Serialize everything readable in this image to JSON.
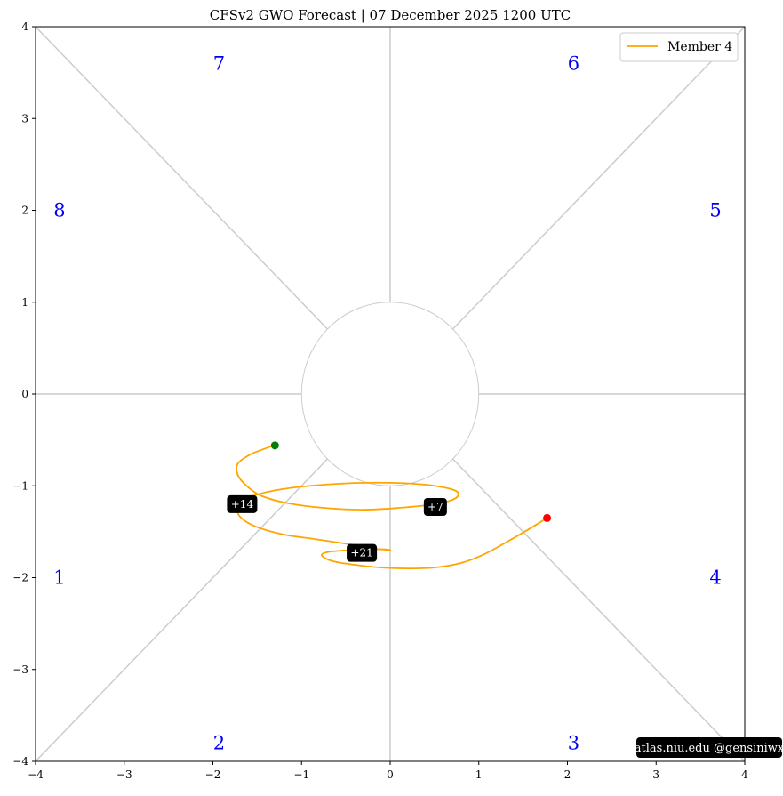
{
  "chart_data": {
    "type": "line",
    "title": "CFSv2 GWO Forecast   |   07  December  2025 1200 UTC",
    "xlabel": "",
    "ylabel": "",
    "xlim": [
      -4,
      4
    ],
    "ylim": [
      -4,
      4
    ],
    "x_ticks": [
      "−4",
      "−3",
      "−2",
      "−1",
      "0",
      "1",
      "2",
      "3",
      "4"
    ],
    "y_ticks": [
      "−4",
      "−3",
      "−2",
      "−1",
      "0",
      "1",
      "2",
      "3",
      "4"
    ],
    "grid": false,
    "legend": {
      "placement": "top-right",
      "entries": [
        "Member 4"
      ]
    },
    "phase_labels": [
      {
        "text": "1",
        "x": -3.73,
        "y": -2.0
      },
      {
        "text": "2",
        "x": -1.93,
        "y": -3.8
      },
      {
        "text": "3",
        "x": 2.07,
        "y": -3.8
      },
      {
        "text": "4",
        "x": 3.67,
        "y": -2.0
      },
      {
        "text": "5",
        "x": 3.67,
        "y": 2.0
      },
      {
        "text": "6",
        "x": 2.07,
        "y": 3.6
      },
      {
        "text": "7",
        "x": -1.93,
        "y": 3.6
      },
      {
        "text": "8",
        "x": -3.73,
        "y": 2.0
      }
    ],
    "series": [
      {
        "name": "Member 4",
        "color": "#ffa500",
        "points": [
          [
            1.77,
            -1.35
          ],
          [
            1.55,
            -1.48
          ],
          [
            1.3,
            -1.62
          ],
          [
            1.05,
            -1.75
          ],
          [
            0.8,
            -1.84
          ],
          [
            0.5,
            -1.89
          ],
          [
            0.2,
            -1.9
          ],
          [
            -0.1,
            -1.89
          ],
          [
            -0.4,
            -1.86
          ],
          [
            -0.65,
            -1.82
          ],
          [
            -0.77,
            -1.76
          ],
          [
            -0.7,
            -1.72
          ],
          [
            -0.45,
            -1.7
          ],
          [
            -0.1,
            -1.69
          ],
          [
            0.0,
            -1.7
          ],
          [
            -0.2,
            -1.68
          ],
          [
            -0.5,
            -1.63
          ],
          [
            -0.85,
            -1.58
          ],
          [
            -1.2,
            -1.53
          ],
          [
            -1.5,
            -1.45
          ],
          [
            -1.68,
            -1.35
          ],
          [
            -1.73,
            -1.23
          ],
          [
            -1.6,
            -1.13
          ],
          [
            -1.3,
            -1.05
          ],
          [
            -0.9,
            -1.0
          ],
          [
            -0.4,
            -0.97
          ],
          [
            0.1,
            -0.97
          ],
          [
            0.5,
            -1.0
          ],
          [
            0.75,
            -1.06
          ],
          [
            0.73,
            -1.14
          ],
          [
            0.5,
            -1.2
          ],
          [
            0.1,
            -1.24
          ],
          [
            -0.3,
            -1.26
          ],
          [
            -0.75,
            -1.24
          ],
          [
            -1.15,
            -1.19
          ],
          [
            -1.45,
            -1.11
          ],
          [
            -1.62,
            -1.0
          ],
          [
            -1.72,
            -0.88
          ],
          [
            -1.72,
            -0.76
          ],
          [
            -1.58,
            -0.66
          ],
          [
            -1.4,
            -0.59
          ],
          [
            -1.3,
            -0.56
          ]
        ],
        "start_point": [
          1.77,
          -1.35
        ],
        "end_point": [
          -1.3,
          -0.56
        ],
        "day_labels": [
          {
            "text": "+7",
            "x": 0.51,
            "y": -1.23
          },
          {
            "text": "+14",
            "x": -1.67,
            "y": -1.2
          },
          {
            "text": "+21",
            "x": -0.32,
            "y": -1.73
          }
        ]
      }
    ],
    "colors": {
      "start": "#ff0000",
      "end": "#008000",
      "phase_text": "#0000ee",
      "guide": "#cccccc"
    }
  },
  "credit": "atlas.niu.edu  @gensiniwx"
}
